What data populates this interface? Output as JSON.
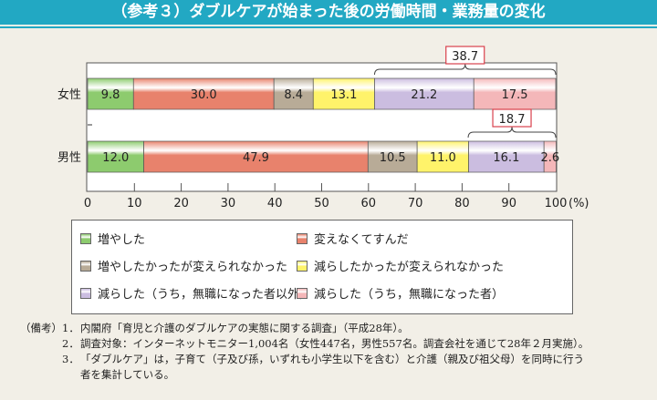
{
  "title": "（参考３）ダブルケアが始まった後の労働時間・業務量の変化",
  "chart_data": {
    "type": "bar",
    "orientation": "horizontal-stacked-100",
    "categories": [
      "女性",
      "男性"
    ],
    "series": [
      {
        "name": "増やした",
        "values": [
          9.8,
          12.0
        ],
        "color": "#8dcb6e"
      },
      {
        "name": "変えなくてすんだ",
        "values": [
          30.0,
          47.9
        ],
        "color": "#e8826c"
      },
      {
        "name": "増やしたかったが変えられなかった",
        "values": [
          8.4,
          10.5
        ],
        "color": "#b8ab97"
      },
      {
        "name": "減らしたかったが変えられなかった",
        "values": [
          13.1,
          11.0
        ],
        "color": "#fff36a"
      },
      {
        "name": "減らした（うち，無職になった者以外）",
        "values": [
          21.2,
          16.1
        ],
        "color": "#cbbde0"
      },
      {
        "name": "減らした（うち，無職になった者）",
        "values": [
          17.5,
          2.6
        ],
        "color": "#f4b7b9"
      }
    ],
    "bracket_totals": [
      "38.7",
      "18.7"
    ],
    "xlim": [
      0,
      100
    ],
    "xticks": [
      "0",
      "10",
      "20",
      "30",
      "40",
      "50",
      "60",
      "70",
      "80",
      "90",
      "100"
    ],
    "xunit": "(%)",
    "legend": "bottom"
  },
  "notes": {
    "prefix": "（備考）",
    "items": [
      {
        "num": "1．",
        "text": "内閣府「育児と介護のダブルケアの実態に関する調査」（平成28年）。"
      },
      {
        "num": "2．",
        "text": "調査対象：インターネットモニター1,004名（女性447名，男性557名。調査会社を通じて28年２月実施）。"
      },
      {
        "num": "3．",
        "text": "「ダブルケア」は，子育て（子及び孫，いずれも小学生以下を含む）と介護（親及び祖父母）を同時に行う"
      },
      {
        "num": "",
        "text": "者を集計している。"
      }
    ]
  }
}
